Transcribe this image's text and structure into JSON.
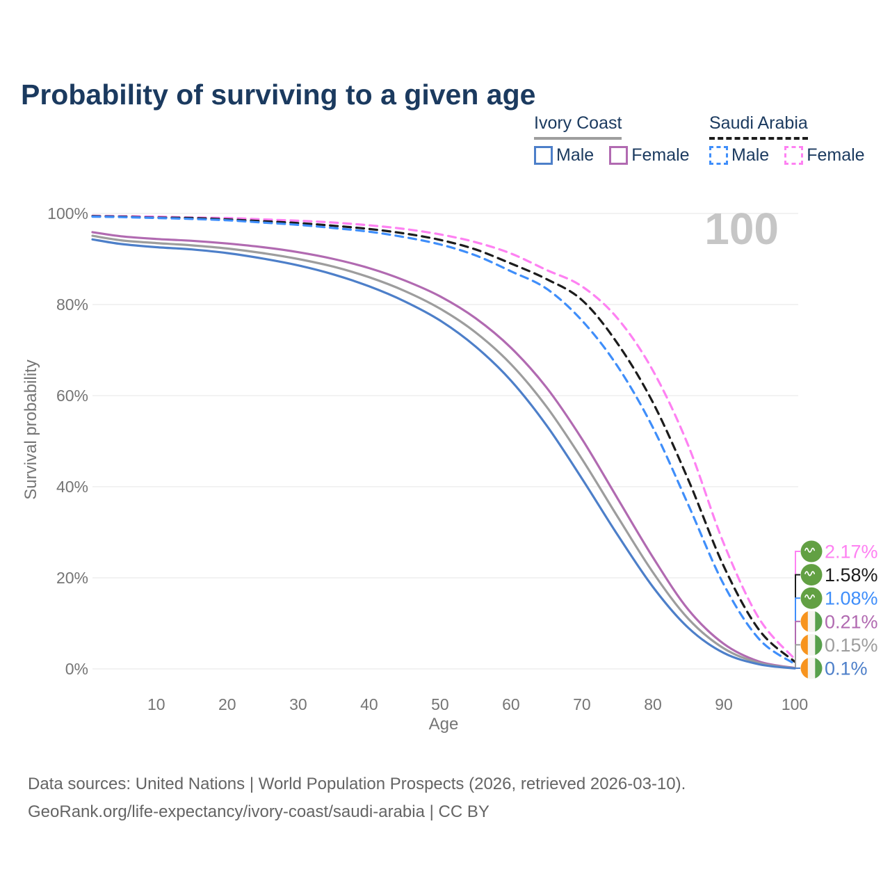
{
  "title": "Probability of surviving to a given age",
  "watermark": "100",
  "legend": {
    "groups": [
      {
        "name": "Ivory Coast",
        "line_style": "solid",
        "underline_color": "#9e9e9e",
        "items": [
          {
            "label": "Male",
            "color": "#4d7fc9"
          },
          {
            "label": "Female",
            "color": "#b16ab1"
          }
        ]
      },
      {
        "name": "Saudi Arabia",
        "line_style": "dashed",
        "underline_color": "#1c1c1c",
        "items": [
          {
            "label": "Male",
            "color": "#3f8efa"
          },
          {
            "label": "Female",
            "color": "#fe81f2"
          }
        ]
      }
    ]
  },
  "chart_data": {
    "type": "line",
    "title": "Probability of surviving to a given age",
    "xlabel": "Age",
    "ylabel": "Survival probability",
    "xlim": [
      1,
      100
    ],
    "ylim": [
      0,
      100
    ],
    "x_ticks": [
      10,
      20,
      30,
      40,
      50,
      60,
      70,
      80,
      90,
      100
    ],
    "y_ticks": [
      0,
      20,
      40,
      60,
      80,
      100
    ],
    "y_tick_suffix": "%",
    "grid": true,
    "x": [
      1,
      5,
      10,
      15,
      20,
      25,
      30,
      35,
      40,
      45,
      50,
      55,
      60,
      65,
      70,
      75,
      80,
      85,
      90,
      95,
      100
    ],
    "series": [
      {
        "name": "Saudi Arabia Female",
        "country": "Saudi Arabia",
        "sex": "Female",
        "color": "#fe81f2",
        "dashed": true,
        "flag": "saudi-arabia",
        "end_label": "2.17%",
        "values": [
          99.5,
          99.4,
          99.3,
          99.1,
          99.0,
          98.7,
          98.4,
          98.0,
          97.4,
          96.6,
          95.4,
          93.7,
          91.2,
          87.6,
          84.0,
          77.0,
          65.5,
          49.0,
          27.5,
          11.0,
          2.17
        ]
      },
      {
        "name": "Saudi Arabia Both sexes",
        "country": "Saudi Arabia",
        "sex": "Both",
        "color": "#1c1c1c",
        "dashed": true,
        "flag": "saudi-arabia",
        "end_label": "1.58%",
        "values": [
          99.4,
          99.3,
          99.1,
          99.0,
          98.7,
          98.3,
          97.9,
          97.3,
          96.6,
          95.6,
          94.2,
          92.1,
          89.0,
          85.6,
          81.0,
          71.5,
          58.5,
          41.5,
          22.5,
          8.5,
          1.58
        ]
      },
      {
        "name": "Saudi Arabia Male",
        "country": "Saudi Arabia",
        "sex": "Male",
        "color": "#3f8efa",
        "dashed": true,
        "flag": "saudi-arabia",
        "end_label": "1.08%",
        "values": [
          99.3,
          99.2,
          99.0,
          98.8,
          98.5,
          98.0,
          97.5,
          96.8,
          96.0,
          94.8,
          93.2,
          90.8,
          87.3,
          83.5,
          76.5,
          66.5,
          53.0,
          36.0,
          18.5,
          6.5,
          1.08
        ]
      },
      {
        "name": "Ivory Coast Female",
        "country": "Ivory Coast",
        "sex": "Female",
        "color": "#b16ab1",
        "dashed": false,
        "flag": "ivory-coast",
        "end_label": "0.21%",
        "values": [
          95.9,
          95.0,
          94.4,
          94.0,
          93.4,
          92.6,
          91.5,
          90.0,
          88.0,
          85.3,
          81.8,
          77.0,
          70.5,
          61.8,
          50.5,
          37.5,
          24.5,
          13.0,
          5.5,
          1.6,
          0.21
        ]
      },
      {
        "name": "Ivory Coast Both sexes",
        "country": "Ivory Coast",
        "sex": "Both",
        "color": "#9d9d9d",
        "dashed": false,
        "flag": "ivory-coast",
        "end_label": "0.15%",
        "values": [
          95.1,
          94.1,
          93.5,
          93.0,
          92.3,
          91.3,
          90.0,
          88.3,
          86.0,
          83.0,
          79.1,
          73.9,
          66.9,
          57.6,
          46.1,
          33.5,
          21.2,
          11.0,
          4.5,
          1.3,
          0.15
        ]
      },
      {
        "name": "Ivory Coast Male",
        "country": "Ivory Coast",
        "sex": "Male",
        "color": "#4d7fc9",
        "dashed": false,
        "flag": "ivory-coast",
        "end_label": "0.1%",
        "values": [
          94.3,
          93.3,
          92.6,
          92.1,
          91.3,
          90.1,
          88.6,
          86.6,
          84.0,
          80.7,
          76.5,
          70.8,
          63.3,
          53.5,
          41.8,
          29.5,
          18.0,
          9.0,
          3.5,
          1.0,
          0.1
        ]
      }
    ],
    "legend_position": "top-right",
    "hover_age_indicator": "100"
  },
  "footer": {
    "line1": "Data sources: United Nations | World Population Prospects (2026, retrieved 2026-03-10).",
    "line2": "GeoRank.org/life-expectancy/ivory-coast/saudi-arabia | CC BY"
  }
}
